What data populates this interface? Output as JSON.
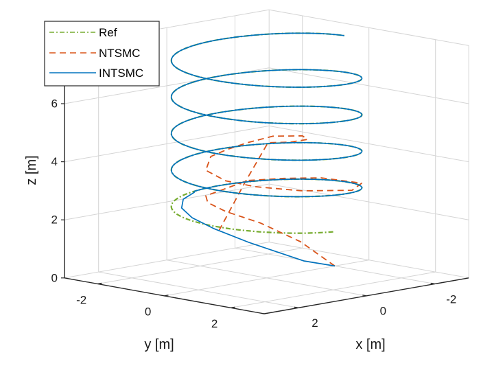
{
  "chart_data": {
    "type": "line3d",
    "title": "",
    "xlabel": "x [m]",
    "ylabel": "y [m]",
    "zlabel": "z [m]",
    "xlim": [
      -3,
      3
    ],
    "ylim": [
      -3,
      3
    ],
    "zlim": [
      0,
      8
    ],
    "x_ticks": [
      "-2",
      "0",
      "2"
    ],
    "y_ticks": [
      "-2",
      "0",
      "2"
    ],
    "z_ticks": [
      "0",
      "2",
      "4",
      "6"
    ],
    "grid": true,
    "legend": {
      "placement": "top-left",
      "entries": [
        "Ref",
        "NTSMC",
        "INTSMC"
      ]
    },
    "colors": {
      "Ref": "#77ac30",
      "NTSMC": "#d95319",
      "INTSMC": "#0072bd",
      "grid": "#d4d4d4",
      "axis": "#262626"
    },
    "series": [
      {
        "name": "Ref",
        "style": "dash-dot",
        "form": "helix: x = r*sin(t), y = r*cos(t), z = z0 + k*t",
        "radius": 2,
        "z0": 2,
        "k": 0.2,
        "t_range": [
          0,
          30
        ]
      },
      {
        "name": "NTSMC",
        "style": "dashed",
        "points": [
          [
            -2.0,
            0.0,
            0.0
          ],
          [
            -1.1,
            -0.11,
            1.0
          ],
          [
            0.09,
            -0.09,
            1.89
          ],
          [
            0.9,
            -0.3,
            2.41
          ],
          [
            1.27,
            -0.47,
            2.76
          ],
          [
            1.1,
            -0.7,
            2.91
          ],
          [
            -0.21,
            -0.79,
            3.15
          ],
          [
            -0.95,
            -0.45,
            3.14
          ],
          [
            -1.4,
            0.2,
            3.2
          ],
          [
            -1.56,
            1.26,
            3.2
          ],
          [
            -0.97,
            1.57,
            3.14
          ],
          [
            0.18,
            1.23,
            3.29
          ],
          [
            0.91,
            0.59,
            3.45
          ],
          [
            1.2,
            0.0,
            3.59
          ],
          [
            1.15,
            -0.65,
            3.81
          ],
          [
            0.63,
            -1.03,
            4.1
          ],
          [
            0.1,
            -1.1,
            4.21
          ],
          [
            -0.46,
            -1.04,
            4.35
          ],
          [
            -0.99,
            -0.82,
            4.51
          ],
          [
            -1.33,
            -0.28,
            4.56
          ],
          [
            -1.2,
            -0.01,
            4.52
          ],
          [
            -0.85,
            -0.15,
            4.47
          ],
          [
            -0.47,
            -0.44,
            4.47
          ],
          [
            0.22,
            -0.42,
            3.26
          ],
          [
            0.9,
            -0.5,
            1.73
          ]
        ]
      },
      {
        "name": "INTSMC",
        "style": "solid",
        "transient_points": [
          [
            -2.0,
            0.0,
            0.0
          ],
          [
            -0.8,
            0.3,
            0.48
          ],
          [
            0.66,
            0.14,
            1.39
          ],
          [
            1.37,
            -0.17,
            1.94
          ],
          [
            1.6,
            -0.6,
            2.28
          ],
          [
            1.41,
            -1.11,
            2.47
          ],
          [
            1.04,
            -1.44,
            2.63
          ],
          [
            0.58,
            -1.58,
            2.74
          ]
        ],
        "then_follows_ref_from_t": 3.05
      }
    ]
  }
}
